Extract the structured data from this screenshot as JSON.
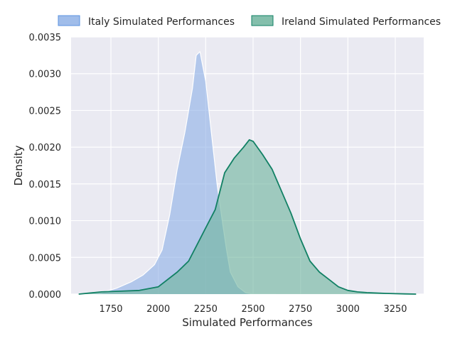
{
  "chart_data": {
    "type": "area",
    "title": "",
    "xlabel": "Simulated Performances",
    "ylabel": "Density",
    "xlim": [
      1540,
      3400
    ],
    "ylim": [
      0,
      0.0035
    ],
    "xticks": [
      1750,
      2000,
      2250,
      2500,
      2750,
      3000,
      3250
    ],
    "yticks": [
      0.0,
      0.0005,
      0.001,
      0.0015,
      0.002,
      0.0025,
      0.003,
      0.0035
    ],
    "xtick_labels": [
      "1750",
      "2000",
      "2250",
      "2500",
      "2750",
      "3000",
      "3250"
    ],
    "ytick_labels": [
      "0.0000",
      "0.0005",
      "0.0010",
      "0.0015",
      "0.0020",
      "0.0025",
      "0.0030",
      "0.0035"
    ],
    "grid": true,
    "legend_position": "top",
    "background_color": "#eaeaf2",
    "series": [
      {
        "name": "Italy Simulated Performances",
        "color": "#5b93e0",
        "fill_color": "#8fb2e6",
        "line_color": "#ffffff",
        "x": [
          1620,
          1700,
          1780,
          1860,
          1920,
          1980,
          2020,
          2060,
          2100,
          2140,
          2180,
          2200,
          2220,
          2250,
          2280,
          2310,
          2340,
          2360,
          2380,
          2420,
          2460,
          2500,
          2560,
          2620
        ],
        "y": [
          0.0,
          2e-05,
          8e-05,
          0.00017,
          0.00026,
          0.0004,
          0.0006,
          0.00108,
          0.0017,
          0.0022,
          0.0028,
          0.00325,
          0.0033,
          0.0029,
          0.0022,
          0.0015,
          0.00095,
          0.0006,
          0.0003,
          0.0001,
          2e-05,
          0.0,
          0.0,
          0.0
        ]
      },
      {
        "name": "Ireland Simulated Performances",
        "color": "#118064",
        "fill_color": "#6fb49e",
        "line_color": "#118064",
        "x": [
          1580,
          1700,
          1800,
          1900,
          2000,
          2100,
          2160,
          2200,
          2250,
          2300,
          2350,
          2400,
          2450,
          2480,
          2500,
          2550,
          2600,
          2650,
          2700,
          2750,
          2800,
          2850,
          2900,
          2950,
          3000,
          3050,
          3100,
          3200,
          3300,
          3360
        ],
        "y": [
          0.0,
          3e-05,
          4e-05,
          5e-05,
          0.0001,
          0.0003,
          0.00045,
          0.00065,
          0.0009,
          0.00115,
          0.00165,
          0.00185,
          0.002,
          0.0021,
          0.00208,
          0.0019,
          0.0017,
          0.0014,
          0.0011,
          0.00075,
          0.00045,
          0.0003,
          0.0002,
          0.0001,
          5e-05,
          3e-05,
          2e-05,
          1e-05,
          3e-06,
          0.0
        ]
      }
    ]
  }
}
